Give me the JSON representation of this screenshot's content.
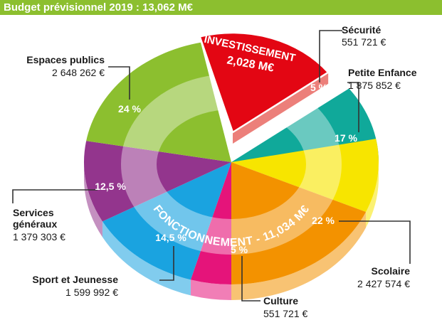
{
  "header": {
    "title": "Budget prévisionnel 2019 : 13,062 M€"
  },
  "chart_data": {
    "type": "pie",
    "title": "Budget prévisionnel 2019 : 13,062 M€",
    "ring_label": "FONCTIONNEMENT - 11,034 M€",
    "investment": {
      "label": "INVESTISSEMENT",
      "value": "2,028 M€"
    },
    "slices": [
      {
        "name": "Sécurité",
        "amount": "551 721 €",
        "percent_label": "5 %",
        "percent": 5,
        "color": "#10a99a"
      },
      {
        "name": "Petite Enfance",
        "amount": "1 875 852 €",
        "percent_label": "17 %",
        "percent": 17,
        "color": "#f7e500"
      },
      {
        "name": "Scolaire",
        "amount": "2 427 574 €",
        "percent_label": "22 %",
        "percent": 22,
        "color": "#f39200"
      },
      {
        "name": "Culture",
        "amount": "551 721 €",
        "percent_label": "5 %",
        "percent": 5,
        "color": "#e5147a"
      },
      {
        "name": "Sport et Jeunesse",
        "amount": "1 599 992 €",
        "percent_label": "14,5 %",
        "percent": 14.5,
        "color": "#1aa3e0"
      },
      {
        "name": "Services généraux",
        "amount": "1 379 303 €",
        "percent_label": "12,5 %",
        "percent": 12.5,
        "color": "#93358d"
      },
      {
        "name": "Espaces publics",
        "amount": "2 648 262 €",
        "percent_label": "24 %",
        "percent": 24,
        "color": "#8cbf2f"
      }
    ]
  }
}
